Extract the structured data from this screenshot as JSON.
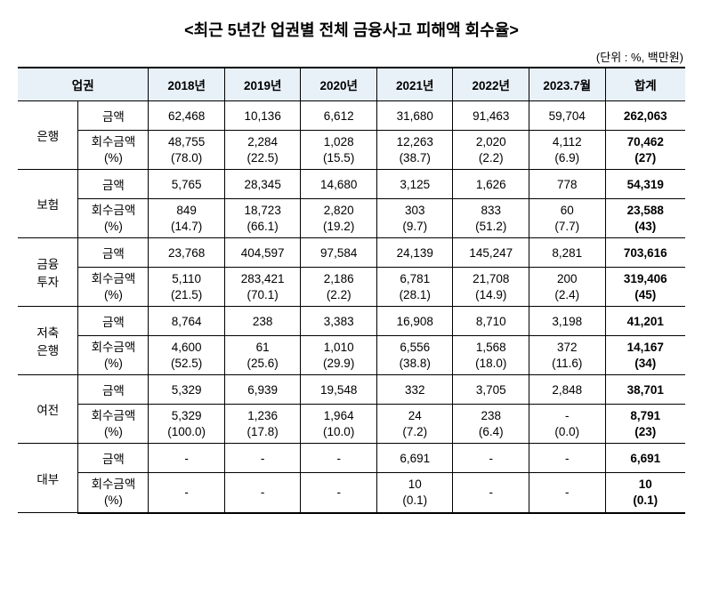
{
  "title": "<최근 5년간 업권별 전체 금융사고 피해액 회수율>",
  "unit_label": "(단위 : %, 백만원)",
  "columns": {
    "sector": "업권",
    "y2018": "2018년",
    "y2019": "2019년",
    "y2020": "2020년",
    "y2021": "2021년",
    "y2022": "2022년",
    "y2023": "2023.7월",
    "total": "합계"
  },
  "metrics": {
    "amount": "금액",
    "recovery": "회수금액",
    "recovery_pct": "(%)"
  },
  "sectors": [
    {
      "name": "은행",
      "amount": {
        "y2018": "62,468",
        "y2019": "10,136",
        "y2020": "6,612",
        "y2021": "31,680",
        "y2022": "91,463",
        "y2023": "59,704",
        "total": "262,063"
      },
      "recovery": {
        "y2018": "48,755",
        "y2019": "2,284",
        "y2020": "1,028",
        "y2021": "12,263",
        "y2022": "2,020",
        "y2023": "4,112",
        "total": "70,462"
      },
      "pct": {
        "y2018": "(78.0)",
        "y2019": "(22.5)",
        "y2020": "(15.5)",
        "y2021": "(38.7)",
        "y2022": "(2.2)",
        "y2023": "(6.9)",
        "total": "(27)"
      }
    },
    {
      "name": "보험",
      "amount": {
        "y2018": "5,765",
        "y2019": "28,345",
        "y2020": "14,680",
        "y2021": "3,125",
        "y2022": "1,626",
        "y2023": "778",
        "total": "54,319"
      },
      "recovery": {
        "y2018": "849",
        "y2019": "18,723",
        "y2020": "2,820",
        "y2021": "303",
        "y2022": "833",
        "y2023": "60",
        "total": "23,588"
      },
      "pct": {
        "y2018": "(14.7)",
        "y2019": "(66.1)",
        "y2020": "(19.2)",
        "y2021": "(9.7)",
        "y2022": "(51.2)",
        "y2023": "(7.7)",
        "total": "(43)"
      }
    },
    {
      "name": "금융\n투자",
      "amount": {
        "y2018": "23,768",
        "y2019": "404,597",
        "y2020": "97,584",
        "y2021": "24,139",
        "y2022": "145,247",
        "y2023": "8,281",
        "total": "703,616"
      },
      "recovery": {
        "y2018": "5,110",
        "y2019": "283,421",
        "y2020": "2,186",
        "y2021": "6,781",
        "y2022": "21,708",
        "y2023": "200",
        "total": "319,406"
      },
      "pct": {
        "y2018": "(21.5)",
        "y2019": "(70.1)",
        "y2020": "(2.2)",
        "y2021": "(28.1)",
        "y2022": "(14.9)",
        "y2023": "(2.4)",
        "total": "(45)"
      }
    },
    {
      "name": "저축\n은행",
      "amount": {
        "y2018": "8,764",
        "y2019": "238",
        "y2020": "3,383",
        "y2021": "16,908",
        "y2022": "8,710",
        "y2023": "3,198",
        "total": "41,201"
      },
      "recovery": {
        "y2018": "4,600",
        "y2019": "61",
        "y2020": "1,010",
        "y2021": "6,556",
        "y2022": "1,568",
        "y2023": "372",
        "total": "14,167"
      },
      "pct": {
        "y2018": "(52.5)",
        "y2019": "(25.6)",
        "y2020": "(29.9)",
        "y2021": "(38.8)",
        "y2022": "(18.0)",
        "y2023": "(11.6)",
        "total": "(34)"
      }
    },
    {
      "name": "여전",
      "amount": {
        "y2018": "5,329",
        "y2019": "6,939",
        "y2020": "19,548",
        "y2021": "332",
        "y2022": "3,705",
        "y2023": "2,848",
        "total": "38,701"
      },
      "recovery": {
        "y2018": "5,329",
        "y2019": "1,236",
        "y2020": "1,964",
        "y2021": "24",
        "y2022": "238",
        "y2023": "-",
        "total": "8,791"
      },
      "pct": {
        "y2018": "(100.0)",
        "y2019": "(17.8)",
        "y2020": "(10.0)",
        "y2021": "(7.2)",
        "y2022": "(6.4)",
        "y2023": "(0.0)",
        "total": "(23)"
      }
    },
    {
      "name": "대부",
      "amount": {
        "y2018": "-",
        "y2019": "-",
        "y2020": "-",
        "y2021": "6,691",
        "y2022": "-",
        "y2023": "-",
        "total": "6,691"
      },
      "recovery": {
        "y2018": "-",
        "y2019": "-",
        "y2020": "-",
        "y2021": "10",
        "y2022": "-",
        "y2023": "-",
        "total": "10"
      },
      "pct": {
        "y2018": "",
        "y2019": "",
        "y2020": "",
        "y2021": "(0.1)",
        "y2022": "",
        "y2023": "",
        "total": "(0.1)"
      }
    }
  ],
  "style": {
    "header_bg": "#e8f0f8",
    "border_color": "#000000",
    "font_family": "Malgun Gothic",
    "title_fontsize": 18,
    "cell_fontsize": 13.5
  }
}
